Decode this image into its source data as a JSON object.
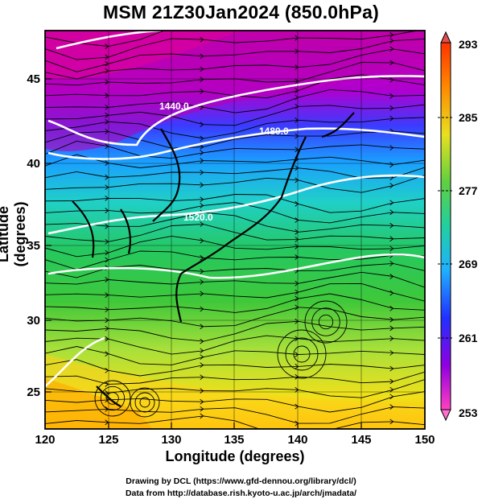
{
  "title": "MSM 21Z30Jan2024 (850.0hPa)",
  "axes": {
    "xlabel": "Longitude (degrees)",
    "ylabel": "Latitude  (degrees)",
    "xticks": [
      "120",
      "125",
      "130",
      "135",
      "140",
      "145",
      "150"
    ],
    "yticks": [
      "25",
      "30",
      "35",
      "40",
      "45"
    ]
  },
  "colorbar": {
    "ticks": [
      "293",
      "285",
      "277",
      "269",
      "261",
      "253"
    ],
    "colors": [
      "#d24b55",
      "#ff8800",
      "#c8e83c",
      "#20c060",
      "#20d0c0",
      "#1e3cff",
      "#c000c0",
      "#ff55c8"
    ]
  },
  "contour_labels": [
    "1440.0",
    "1480.0",
    "1520.0"
  ],
  "footer": {
    "line1": "Drawing by DCL (https://www.gfd-dennou.org/library/dcl/)",
    "line2": "Data from http://database.rish.kyoto-u.ac.jp/arch/jmadata/"
  }
}
